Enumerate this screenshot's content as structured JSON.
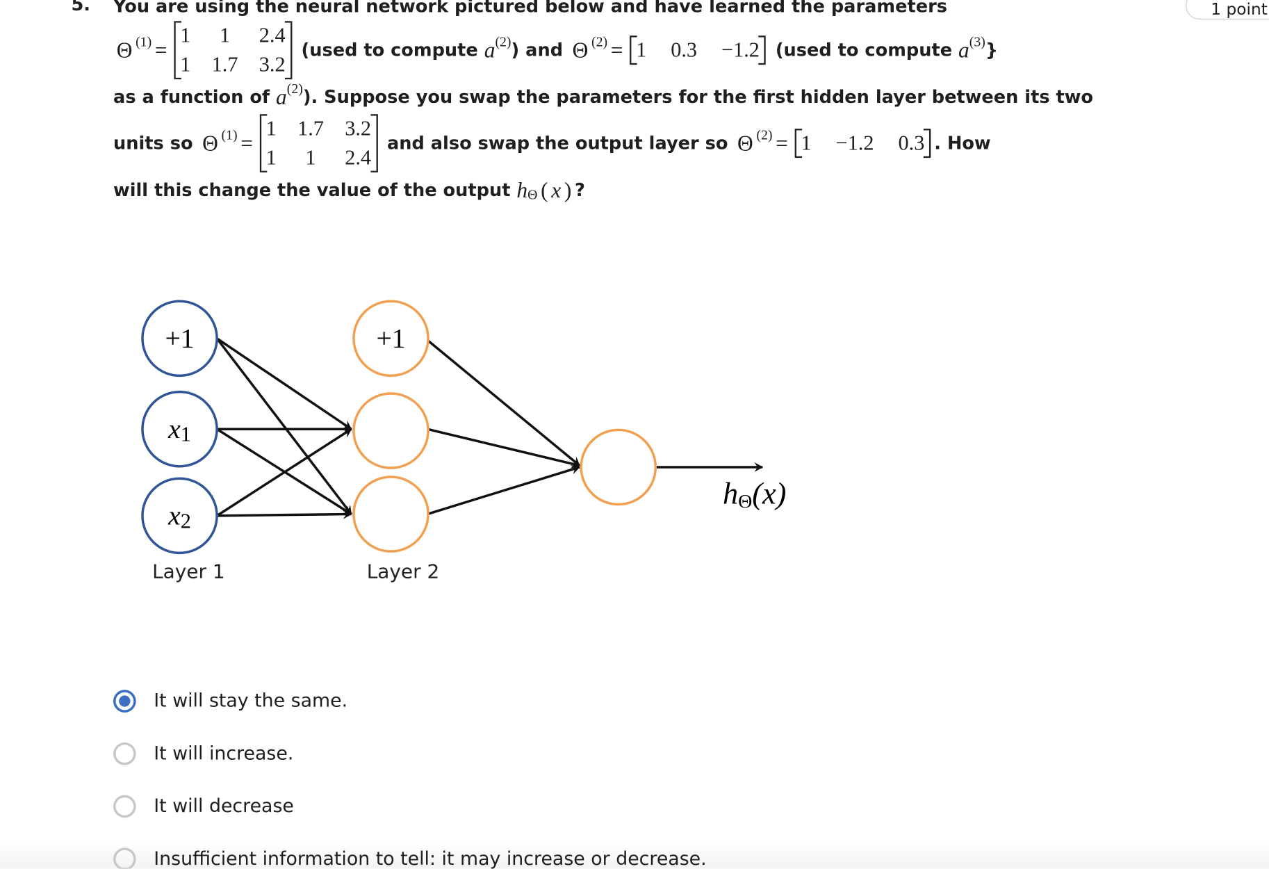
{
  "question": {
    "number": "5.",
    "points": "1 point",
    "lines": [
      [
        {
          "t": "You are using the neural network pictured below and have learned the parameters"
        }
      ],
      [
        {
          "m": "Θ"
        },
        {
          "sup": "(1)"
        },
        {
          "m": "="
        },
        {
          "matrix": [
            [
              "1",
              "1",
              "2.4"
            ],
            [
              "1",
              "1.7",
              "3.2"
            ]
          ]
        },
        {
          "t": " (used to compute "
        },
        {
          "mi": "a"
        },
        {
          "sup": "(2)"
        },
        {
          "t": ") and "
        },
        {
          "m": "Θ"
        },
        {
          "sup": "(2)"
        },
        {
          "m": "="
        },
        {
          "row": [
            "1",
            "0.3",
            "−1.2"
          ]
        },
        {
          "t": " (used to compute "
        },
        {
          "mi": "a"
        },
        {
          "sup": "(3)"
        },
        {
          "t": "}"
        }
      ],
      [
        {
          "t": "as a function of "
        },
        {
          "mi": "a"
        },
        {
          "sup": "(2)"
        },
        {
          "t": "). Suppose you swap the parameters for the first hidden layer between its two"
        }
      ],
      [
        {
          "t": "units so "
        },
        {
          "m": "Θ"
        },
        {
          "sup": "(1)"
        },
        {
          "m": "="
        },
        {
          "matrix": [
            [
              "1",
              "1.7",
              "3.2"
            ],
            [
              "1",
              "1",
              "2.4"
            ]
          ]
        },
        {
          "t": " and also swap the output layer so "
        },
        {
          "m": "Θ"
        },
        {
          "sup": "(2)"
        },
        {
          "m": "="
        },
        {
          "row": [
            "1",
            "−1.2",
            "0.3"
          ]
        },
        {
          "t": ". How"
        }
      ],
      [
        {
          "t": "will this change the value of the output "
        },
        {
          "mi": "h"
        },
        {
          "sub": "Θ"
        },
        {
          "m": "("
        },
        {
          "mi": "x"
        },
        {
          "m": ")"
        },
        {
          "t": "?"
        }
      ]
    ]
  },
  "diagram": {
    "layer1": [
      {
        "label": "+1"
      },
      {
        "label": "x",
        "sub": "1"
      },
      {
        "label": "x",
        "sub": "2"
      }
    ],
    "layer2": [
      {
        "label": "+1"
      }
    ],
    "layer_labels": [
      "Layer 1",
      "Layer 2"
    ],
    "output": {
      "symbol": "h",
      "sub": "Θ",
      "arg": "(x)"
    }
  },
  "options": {
    "items": [
      "It will stay the same.",
      "It will increase.",
      "It will decrease",
      "Insufficient information to tell: it may increase or decrease."
    ],
    "selected": 0
  }
}
